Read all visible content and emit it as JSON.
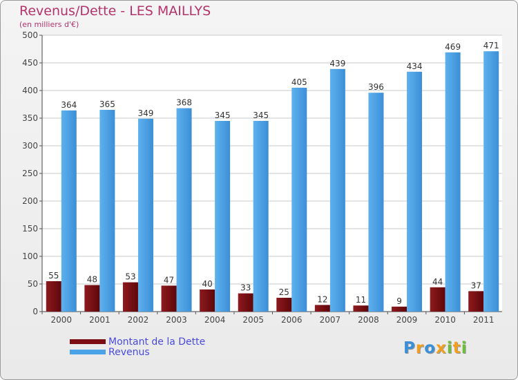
{
  "chart_data": {
    "type": "bar",
    "title": "Revenus/Dette - LES MAILLYS",
    "subtitle": "(en milliers d'€)",
    "categories": [
      "2000",
      "2001",
      "2002",
      "2003",
      "2004",
      "2005",
      "2006",
      "2007",
      "2008",
      "2009",
      "2010",
      "2011"
    ],
    "series": [
      {
        "name": "Montant de la Dette",
        "values": [
          55,
          48,
          53,
          47,
          40,
          33,
          25,
          12,
          11,
          9,
          44,
          37
        ],
        "color": "#7a0e12"
      },
      {
        "name": "Revenus",
        "values": [
          364,
          365,
          349,
          368,
          345,
          345,
          405,
          439,
          396,
          434,
          469,
          471
        ],
        "color": "#4aa3e6"
      }
    ],
    "ylim": [
      0,
      500
    ],
    "yticks": [
      0,
      50,
      100,
      150,
      200,
      250,
      300,
      350,
      400,
      450,
      500
    ],
    "grid": true,
    "legend_position": "bottom-left"
  },
  "logo": {
    "letters": [
      "P",
      "r",
      "o",
      "x",
      "i",
      "t",
      "i"
    ],
    "colors": [
      "#3a8fd8",
      "#f0a020",
      "#3a8fd8",
      "#f0a020",
      "#6cbe3a",
      "#f0a020",
      "#6cbe3a"
    ]
  }
}
